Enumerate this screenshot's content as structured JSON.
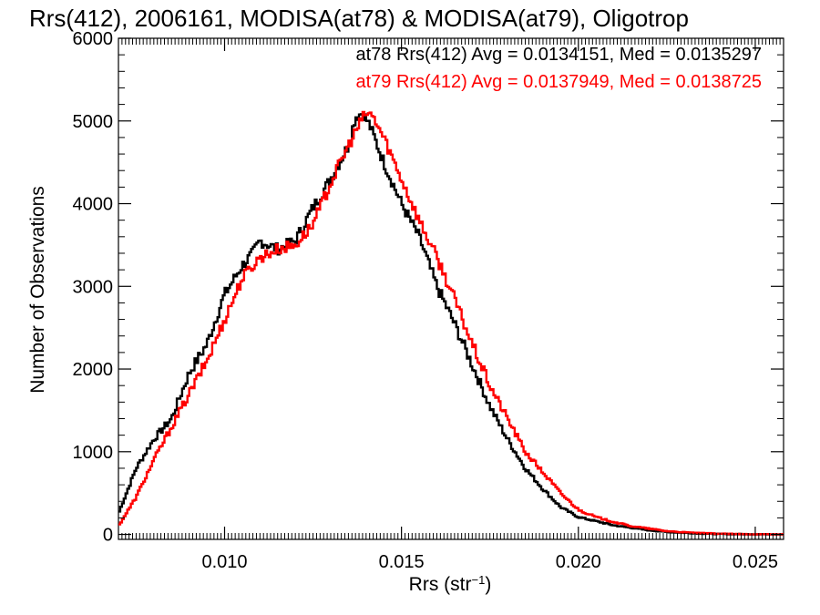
{
  "chart_data": {
    "type": "line",
    "title": "Rrs(412), 2006161, MODISA(at78) & MODISA(at79), Oligotrop",
    "xlabel_main": "Rrs (str",
    "xlabel_sup": "−1",
    "xlabel_close": ")",
    "ylabel": "Number of Observations",
    "xlim": [
      0.007,
      0.0258
    ],
    "ylim": [
      -60,
      6000
    ],
    "x_ticks": [
      0.01,
      0.015,
      0.02,
      0.025
    ],
    "x_tick_labels": [
      "0.010",
      "0.015",
      "0.020",
      "0.025"
    ],
    "y_ticks": [
      0,
      1000,
      2000,
      3000,
      4000,
      5000,
      6000
    ],
    "y_tick_labels": [
      "0",
      "1000",
      "2000",
      "3000",
      "4000",
      "5000",
      "6000"
    ],
    "grid": false,
    "legend_placement": "top-right",
    "legend": [
      "at78 Rrs(412) Avg = 0.0134151, Med = 0.0135297",
      "at79 Rrs(412) Avg = 0.0137949, Med = 0.0138725"
    ],
    "series": [
      {
        "name": "at78",
        "color": "#000000",
        "x": [
          0.007,
          0.0075,
          0.008,
          0.0085,
          0.009,
          0.0095,
          0.01,
          0.0105,
          0.0108,
          0.011,
          0.0115,
          0.012,
          0.0125,
          0.013,
          0.0135,
          0.0137,
          0.0139,
          0.0141,
          0.0145,
          0.015,
          0.0155,
          0.016,
          0.0165,
          0.017,
          0.0175,
          0.018,
          0.0185,
          0.019,
          0.0195,
          0.02,
          0.0205,
          0.021,
          0.0215,
          0.022,
          0.0225,
          0.023,
          0.0235,
          0.024,
          0.0245,
          0.025,
          0.0258
        ],
        "y": [
          250,
          800,
          1150,
          1400,
          1950,
          2300,
          2900,
          3250,
          3400,
          3550,
          3450,
          3550,
          3950,
          4300,
          4700,
          5050,
          5100,
          4950,
          4500,
          4000,
          3600,
          3000,
          2550,
          2050,
          1550,
          1150,
          800,
          550,
          330,
          210,
          160,
          110,
          80,
          50,
          30,
          20,
          10,
          5,
          3,
          1,
          0
        ]
      },
      {
        "name": "at79",
        "color": "#ff0000",
        "x": [
          0.007,
          0.0075,
          0.008,
          0.0085,
          0.009,
          0.0095,
          0.01,
          0.0105,
          0.011,
          0.0115,
          0.012,
          0.0125,
          0.013,
          0.0135,
          0.0138,
          0.014,
          0.0142,
          0.0145,
          0.015,
          0.0155,
          0.016,
          0.0165,
          0.017,
          0.0175,
          0.018,
          0.0185,
          0.019,
          0.0195,
          0.02,
          0.0205,
          0.021,
          0.0215,
          0.022,
          0.0225,
          0.023,
          0.0235,
          0.024,
          0.0245,
          0.025,
          0.0258
        ],
        "y": [
          100,
          450,
          900,
          1300,
          1700,
          2100,
          2600,
          3100,
          3350,
          3450,
          3500,
          3750,
          4250,
          4700,
          4950,
          5100,
          5050,
          4800,
          4300,
          3800,
          3350,
          2850,
          2300,
          1800,
          1400,
          1000,
          750,
          500,
          300,
          210,
          150,
          100,
          70,
          40,
          25,
          15,
          8,
          4,
          2,
          0
        ]
      }
    ]
  }
}
